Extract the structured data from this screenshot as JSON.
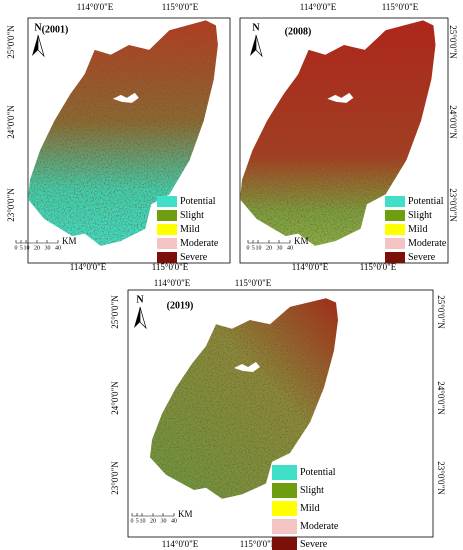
{
  "panels": [
    {
      "label": "(2001)",
      "lon_top": [
        "114°0'0\"E",
        "115°0'0\"E"
      ],
      "lon_bottom": [
        "114°0'0\"E",
        "115°0'0\"E"
      ],
      "lat_left": [
        "25°0'0\"N",
        "24°0'0\"N",
        "23°0'0\"N"
      ],
      "lat_right": []
    },
    {
      "label": "(2008)",
      "lon_top": [
        "114°0'0\"E",
        "115°0'0\"E"
      ],
      "lon_bottom": [
        "114°0'0\"E",
        "115°0'0\"E"
      ],
      "lat_left": [],
      "lat_right": [
        "25°0'0\"N",
        "24°0'0\"N",
        "23°0'0\"N"
      ]
    },
    {
      "label": "(2019)",
      "lon_top": [
        "114°0'0\"E",
        "115°0'0\"E"
      ],
      "lon_bottom": [
        "114°0'0\"E",
        "115°0'0\"E"
      ],
      "lat_left": [
        "25°0'0\"N",
        "24°0'0\"N",
        "23°0'0\"N"
      ],
      "lat_right": [
        "25°0'0\"N",
        "24°0'0\"N",
        "23°0'0\"N"
      ]
    }
  ],
  "legend": [
    {
      "name": "Potential",
      "color": "#40e0c8"
    },
    {
      "name": "Slight",
      "color": "#6e9e10"
    },
    {
      "name": "Mild",
      "color": "#ffff00"
    },
    {
      "name": "Moderate",
      "color": "#f4c4c4"
    },
    {
      "name": "Severe",
      "color": "#7a1008"
    }
  ],
  "scale_labels": [
    "0",
    "5",
    "10",
    "20",
    "30",
    "40"
  ],
  "scale_unit": "KM",
  "north": "N"
}
